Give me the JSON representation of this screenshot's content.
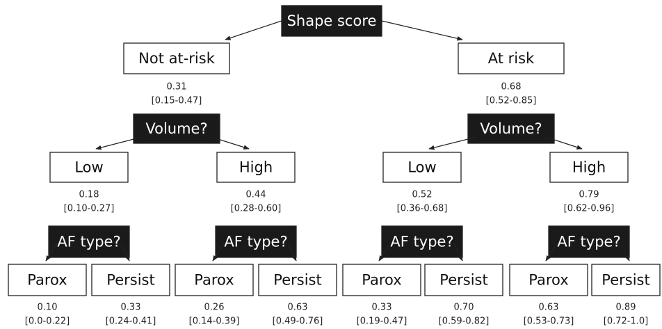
{
  "root": {
    "label": "Shape score"
  },
  "branches": [
    {
      "label": "Not at-risk",
      "value": "0.31",
      "interval": "[0.15-0.47]",
      "split": "Volume?",
      "children": [
        {
          "label": "Low",
          "value": "0.18",
          "interval": "[0.10-0.27]",
          "split": "AF type?",
          "children": [
            {
              "label": "Parox",
              "value": "0.10",
              "interval": "[0.0-0.22]"
            },
            {
              "label": "Persist",
              "value": "0.33",
              "interval": "[0.24-0.41]"
            }
          ]
        },
        {
          "label": "High",
          "value": "0.44",
          "interval": "[0.28-0.60]",
          "split": "AF type?",
          "children": [
            {
              "label": "Parox",
              "value": "0.26",
              "interval": "[0.14-0.39]"
            },
            {
              "label": "Persist",
              "value": "0.63",
              "interval": "[0.49-0.76]"
            }
          ]
        }
      ]
    },
    {
      "label": "At risk",
      "value": "0.68",
      "interval": "[0.52-0.85]",
      "split": "Volume?",
      "children": [
        {
          "label": "Low",
          "value": "0.52",
          "interval": "[0.36-0.68]",
          "split": "AF type?",
          "children": [
            {
              "label": "Parox",
              "value": "0.33",
              "interval": "[0.19-0.47]"
            },
            {
              "label": "Persist",
              "value": "0.70",
              "interval": "[0.59-0.82]"
            }
          ]
        },
        {
          "label": "High",
          "value": "0.79",
          "interval": "[0.62-0.96]",
          "split": "AF type?",
          "children": [
            {
              "label": "Parox",
              "value": "0.63",
              "interval": "[0.53-0.73]"
            },
            {
              "label": "Persist",
              "value": "0.89",
              "interval": "[0.72-1.0]"
            }
          ]
        }
      ]
    }
  ]
}
